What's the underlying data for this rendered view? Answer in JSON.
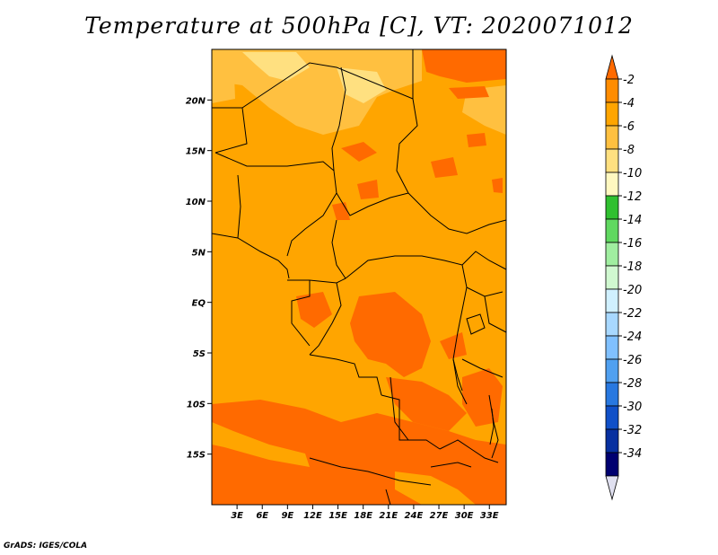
{
  "title": "Temperature at 500hPa [C], VT: 2020071012",
  "credit": "GrADS: IGES/COLA",
  "map": {
    "lon_range": [
      0,
      35
    ],
    "lat_range": [
      -20,
      25
    ],
    "x_ticks": [
      {
        "lon": 3,
        "label": "3E"
      },
      {
        "lon": 6,
        "label": "6E"
      },
      {
        "lon": 9,
        "label": "9E"
      },
      {
        "lon": 12,
        "label": "12E"
      },
      {
        "lon": 15,
        "label": "15E"
      },
      {
        "lon": 18,
        "label": "18E"
      },
      {
        "lon": 21,
        "label": "21E"
      },
      {
        "lon": 24,
        "label": "24E"
      },
      {
        "lon": 27,
        "label": "27E"
      },
      {
        "lon": 30,
        "label": "30E"
      },
      {
        "lon": 33,
        "label": "33E"
      }
    ],
    "y_ticks": [
      {
        "lat": 20,
        "label": "20N"
      },
      {
        "lat": 15,
        "label": "15N"
      },
      {
        "lat": 10,
        "label": "10N"
      },
      {
        "lat": 5,
        "label": "5N"
      },
      {
        "lat": 0,
        "label": "EQ"
      },
      {
        "lat": -5,
        "label": "5S"
      },
      {
        "lat": -10,
        "label": "10S"
      },
      {
        "lat": -15,
        "label": "15S"
      }
    ]
  },
  "colorbar": {
    "labels": [
      "-2",
      "-4",
      "-6",
      "-8",
      "-10",
      "-12",
      "-14",
      "-16",
      "-18",
      "-20",
      "-22",
      "-24",
      "-26",
      "-28",
      "-30",
      "-32",
      "-34"
    ],
    "colors": [
      "#ff6a00",
      "#ff8c00",
      "#ffa500",
      "#ffc040",
      "#ffe080",
      "#fff8c0",
      "#30c030",
      "#60d860",
      "#a0eea0",
      "#d0f8d0",
      "#d0f0ff",
      "#a8d8ff",
      "#80c0ff",
      "#50a0f0",
      "#2878e0",
      "#1050c8",
      "#0830a0",
      "#000070",
      "#e0e0f0"
    ]
  },
  "colors": {
    "base": "#ffa500",
    "warm": "#ff6a00",
    "cool": "#ffc040",
    "coolest": "#ffe080",
    "border": "#000000"
  }
}
